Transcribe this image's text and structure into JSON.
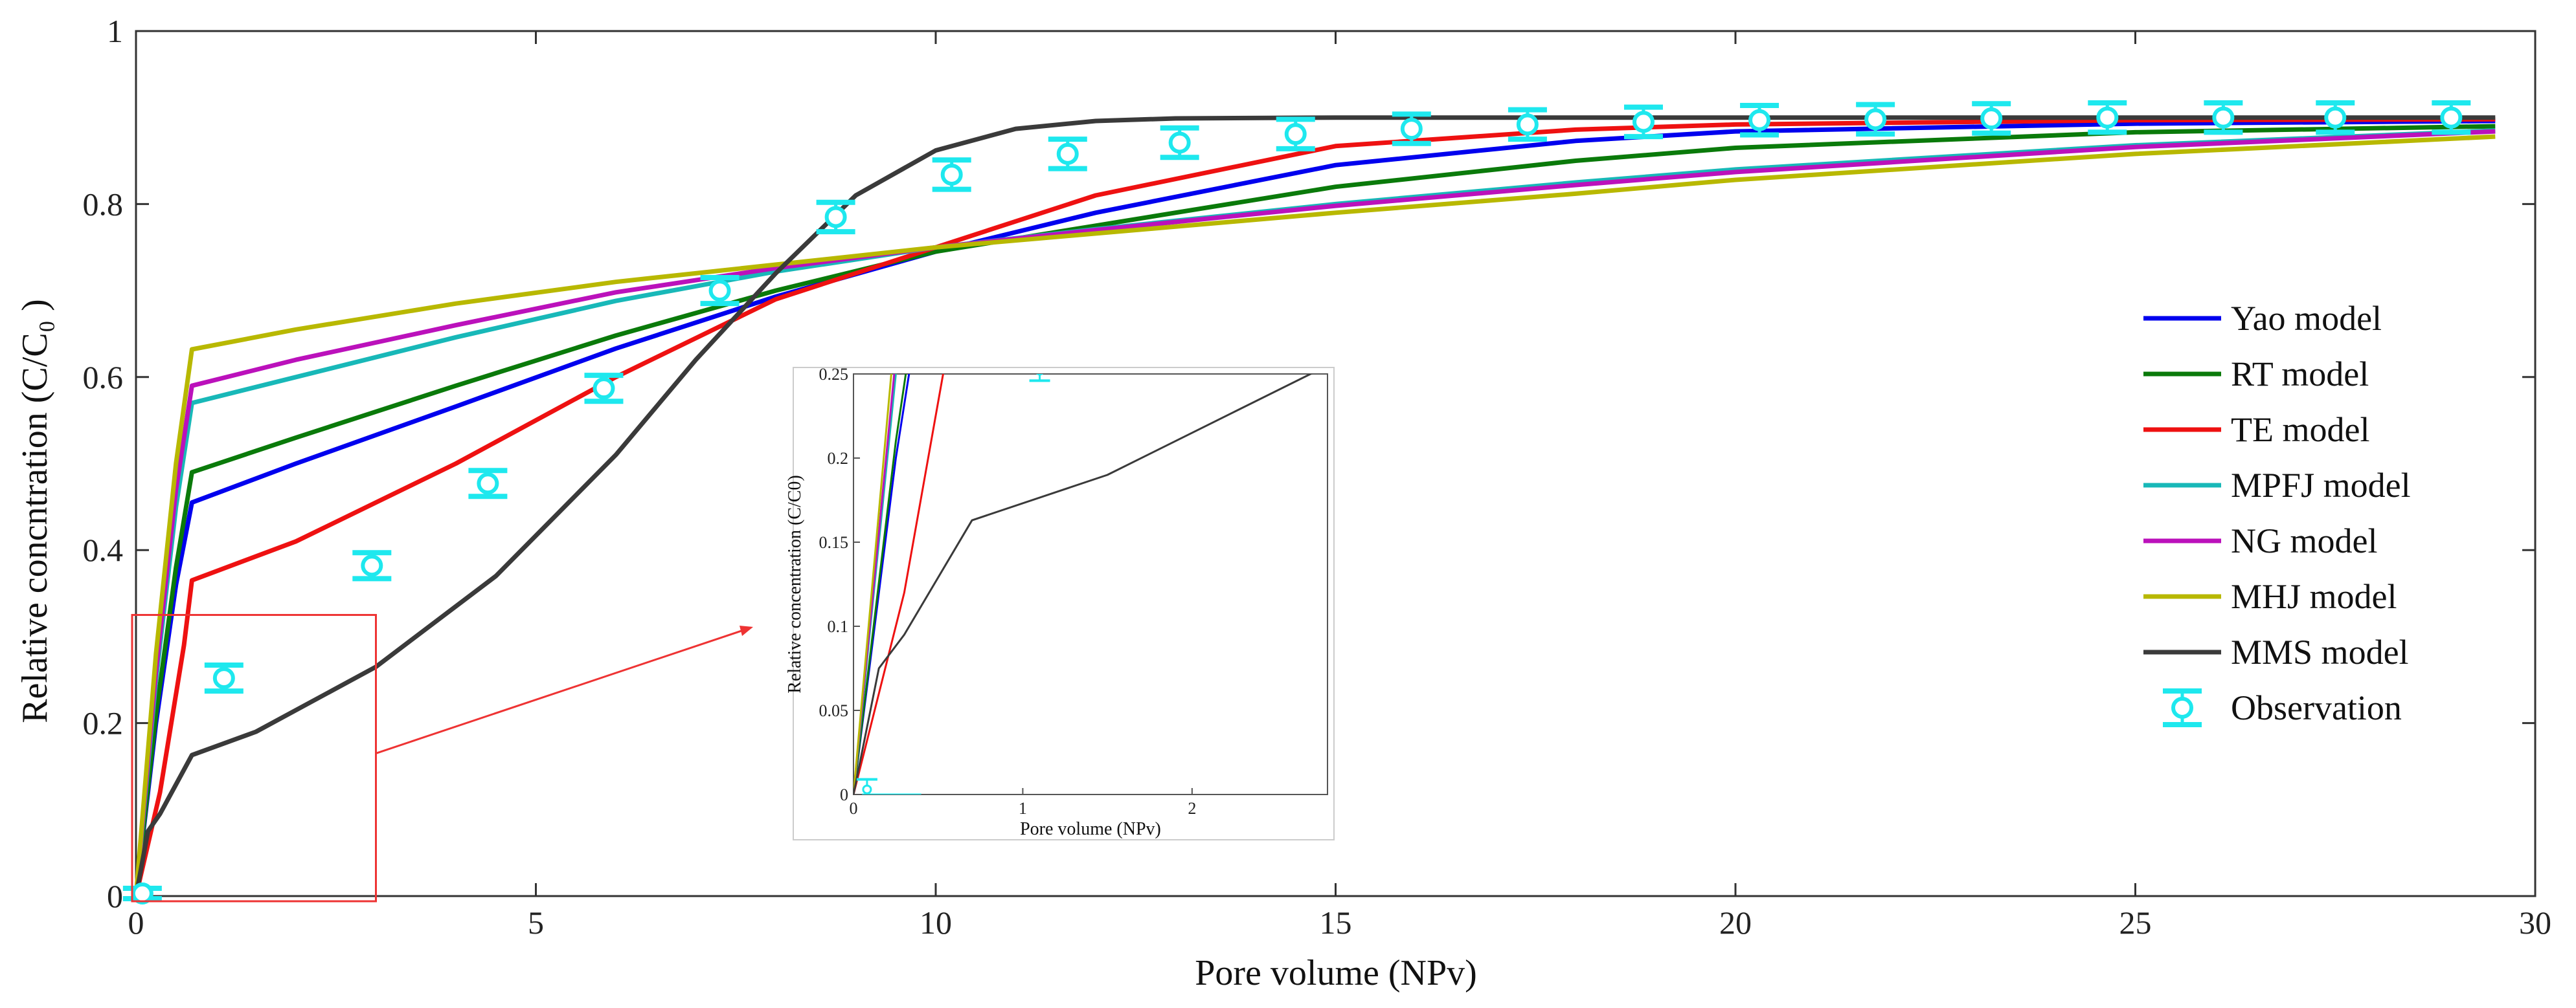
{
  "chart_data": {
    "type": "line",
    "title": "",
    "xlabel": "Pore volume (NPv)",
    "ylabel": "Relative concntration (C/C₀ )",
    "xlim": [
      0,
      30
    ],
    "ylim": [
      0,
      1
    ],
    "x_ticks": [
      "0",
      "5",
      "10",
      "15",
      "20",
      "25",
      "30"
    ],
    "y_ticks": [
      "0",
      "0.2",
      "0.4",
      "0.6",
      "0.8",
      "1"
    ],
    "legend_position": "right",
    "series": [
      {
        "name": "Yao model",
        "color": "#0000ee",
        "x": [
          0,
          0.25,
          0.5,
          0.7,
          2,
          4,
          6,
          8,
          10,
          12,
          15,
          18,
          20,
          25,
          29.5
        ],
        "y": [
          0,
          0.2,
          0.36,
          0.455,
          0.5,
          0.566,
          0.633,
          0.693,
          0.745,
          0.79,
          0.845,
          0.873,
          0.884,
          0.893,
          0.896
        ]
      },
      {
        "name": "RT model",
        "color": "#0a7a0a",
        "x": [
          0,
          0.25,
          0.5,
          0.7,
          2,
          4,
          6,
          8,
          10,
          12,
          15,
          18,
          20,
          25,
          29.5
        ],
        "y": [
          0,
          0.21,
          0.38,
          0.49,
          0.53,
          0.59,
          0.648,
          0.7,
          0.745,
          0.775,
          0.82,
          0.85,
          0.865,
          0.883,
          0.89
        ]
      },
      {
        "name": "TE model",
        "color": "#ee1111",
        "x": [
          0,
          0.3,
          0.6,
          0.7,
          2,
          4,
          6,
          8,
          10,
          12,
          15,
          18,
          20,
          25,
          29.5
        ],
        "y": [
          0,
          0.12,
          0.29,
          0.365,
          0.41,
          0.5,
          0.6,
          0.69,
          0.75,
          0.81,
          0.867,
          0.886,
          0.892,
          0.897,
          0.898
        ]
      },
      {
        "name": "MPFJ model",
        "color": "#18b8b8",
        "x": [
          0,
          0.25,
          0.5,
          0.7,
          2,
          4,
          6,
          8,
          10,
          12,
          15,
          18,
          20,
          25,
          29.5
        ],
        "y": [
          0,
          0.25,
          0.45,
          0.57,
          0.6,
          0.646,
          0.688,
          0.722,
          0.75,
          0.771,
          0.8,
          0.825,
          0.84,
          0.868,
          0.885
        ]
      },
      {
        "name": "NG model",
        "color": "#bb11bb",
        "x": [
          0,
          0.25,
          0.5,
          0.7,
          2,
          4,
          6,
          8,
          10,
          12,
          15,
          18,
          20,
          25,
          29.5
        ],
        "y": [
          0,
          0.26,
          0.47,
          0.59,
          0.62,
          0.66,
          0.698,
          0.726,
          0.75,
          0.77,
          0.798,
          0.822,
          0.837,
          0.866,
          0.884
        ]
      },
      {
        "name": "MHJ model",
        "color": "#b8b800",
        "x": [
          0,
          0.25,
          0.5,
          0.7,
          2,
          4,
          6,
          8,
          10,
          12,
          15,
          18,
          20,
          25,
          29.5
        ],
        "y": [
          0,
          0.28,
          0.5,
          0.632,
          0.655,
          0.685,
          0.71,
          0.73,
          0.75,
          0.766,
          0.79,
          0.812,
          0.828,
          0.858,
          0.878
        ]
      },
      {
        "name": "MMS model",
        "color": "#3a3a3a",
        "x": [
          0,
          0.15,
          0.3,
          0.7,
          1.5,
          3,
          4.5,
          6,
          7,
          8,
          9,
          10,
          11,
          12,
          13,
          15,
          20,
          29.5
        ],
        "y": [
          0,
          0.075,
          0.095,
          0.163,
          0.19,
          0.265,
          0.37,
          0.51,
          0.62,
          0.72,
          0.81,
          0.862,
          0.887,
          0.896,
          0.899,
          0.9,
          0.9,
          0.9
        ]
      }
    ],
    "observation": {
      "name": "Observation",
      "color": "#1ee8ee",
      "x": [
        0.08,
        1.1,
        2.95,
        4.4,
        5.85,
        7.3,
        8.75,
        10.2,
        11.65,
        13.05,
        14.5,
        15.95,
        17.4,
        18.85,
        20.3,
        21.75,
        23.2,
        24.65,
        26.1,
        27.5,
        28.95
      ],
      "y": [
        0.003,
        0.252,
        0.382,
        0.477,
        0.587,
        0.7,
        0.785,
        0.834,
        0.858,
        0.871,
        0.881,
        0.887,
        0.892,
        0.895,
        0.897,
        0.898,
        0.899,
        0.9,
        0.9,
        0.9,
        0.9
      ],
      "err": [
        0.006,
        0.015,
        0.015,
        0.015,
        0.015,
        0.015,
        0.017,
        0.017,
        0.017,
        0.017,
        0.017,
        0.017,
        0.017,
        0.017,
        0.017,
        0.017,
        0.017,
        0.017,
        0.017,
        0.017,
        0.017
      ]
    },
    "inset": {
      "xlabel": "Pore volume (NPv)",
      "ylabel": "Relative concentration (C/C0)",
      "xlim": [
        0,
        2.8
      ],
      "ylim": [
        0,
        0.25
      ],
      "x_ticks": [
        "0",
        "1",
        "2"
      ],
      "y_ticks": [
        "0",
        "0.05",
        "0.1",
        "0.15",
        "0.2",
        "0.25"
      ],
      "zoom_region": {
        "x": [
          0,
          3
        ],
        "y": [
          0,
          0.325
        ]
      }
    }
  }
}
